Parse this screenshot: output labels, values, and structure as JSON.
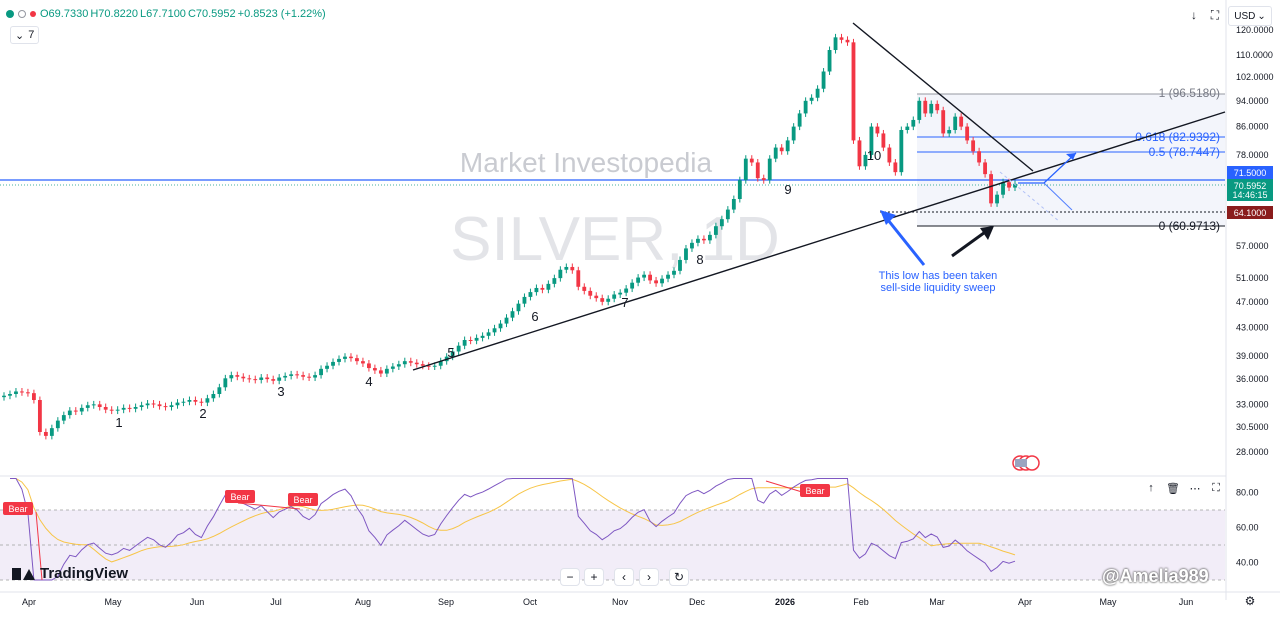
{
  "header": {
    "ohlc": {
      "open": "O69.7330",
      "high": "H70.8220",
      "low": "L67.7100",
      "close": "C70.5952",
      "change": "+0.8523 (+1.22%)"
    },
    "indicator_count": "7",
    "currency": "USD"
  },
  "watermark": {
    "brand": "Market Investopedia",
    "symbol": "SILVER, 1D"
  },
  "annotations": {
    "note_line1": "This low has been taken",
    "note_line2": "sell-side liquidity sweep",
    "fib_1": "1 (96.5180)",
    "fib_0618": "0.618 (82.9392)",
    "fib_05": "0.5 (78.7447)",
    "fib_0": "0 (60.9713)"
  },
  "colors": {
    "up": "#089981",
    "down": "#f23645",
    "blue": "#2962ff",
    "rsi_line": "#7e57c2",
    "rsi_ma": "#f7c548",
    "price_label_green": "#089981",
    "price_label_red": "#b71c1c",
    "resistance_label": "#2962ff"
  },
  "price_labels": {
    "resistance": "71.5000",
    "last": "70.5952",
    "countdown": "14:46:15",
    "support": "64.1000"
  },
  "footer": {
    "logo_text": "TradingView",
    "user_watermark": "@Amelia989"
  },
  "chart_data": {
    "type": "candlestick",
    "y_ticks": [
      "120.0000",
      "110.0000",
      "102.0000",
      "94.0000",
      "86.0000",
      "78.0000",
      "64.1000",
      "57.0000",
      "51.0000",
      "47.0000",
      "43.0000",
      "39.0000",
      "36.0000",
      "33.0000",
      "30.5000",
      "28.0000"
    ],
    "x_ticks": [
      "Apr",
      "May",
      "Jun",
      "Jul",
      "Aug",
      "Sep",
      "Oct",
      "Nov",
      "Dec",
      "2026",
      "Feb",
      "Mar",
      "Apr",
      "May",
      "Jun"
    ],
    "wave_labels": [
      "1",
      "2",
      "3",
      "4",
      "5",
      "6",
      "7",
      "8",
      "9",
      "10"
    ],
    "rsi": {
      "ticks": [
        "80.00",
        "60.00",
        "40.00"
      ],
      "bear_labels": [
        "Bear",
        "Bear",
        "Bear",
        "Bear"
      ]
    },
    "series": [
      {
        "values": [
          34.0,
          34.2,
          34.5,
          34.4,
          34.3,
          33.5,
          30.0,
          29.6,
          30.4,
          31.2,
          31.8,
          32.3,
          32.2,
          32.6,
          32.9,
          33.0,
          32.7,
          32.4,
          32.3,
          32.4,
          32.6,
          32.5,
          32.7,
          32.9,
          33.1,
          33.0,
          32.8,
          32.7,
          32.9,
          33.2,
          33.3,
          33.5,
          33.3,
          33.2,
          33.7,
          34.2,
          35.0,
          36.1,
          36.5,
          36.3,
          36.1,
          36.0,
          35.9,
          36.2,
          36.0,
          35.8,
          36.2,
          36.4,
          36.6,
          36.5,
          36.3,
          36.2,
          36.5,
          37.3,
          37.7,
          38.2,
          38.6,
          38.9,
          38.7,
          38.3,
          38.0,
          37.4,
          37.1,
          36.7,
          37.3,
          37.6,
          37.9,
          38.3,
          38.1,
          37.9,
          37.7,
          37.6,
          37.7,
          38.3,
          38.9,
          39.6,
          40.4,
          41.2,
          41.1,
          41.5,
          41.8,
          42.3,
          42.9,
          43.6,
          44.5,
          45.5,
          46.7,
          47.8,
          48.6,
          49.3,
          49.0,
          50.0,
          51.0,
          52.5,
          53.0,
          52.4,
          49.5,
          48.8,
          48.0,
          47.6,
          47.0,
          47.5,
          48.2,
          48.5,
          49.2,
          50.2,
          51.1,
          51.6,
          50.6,
          50.1,
          50.9,
          51.6,
          52.3,
          54.3,
          56.5,
          57.6,
          58.4,
          58.1,
          59.2,
          61.0,
          62.5,
          64.6,
          67.0,
          71.5,
          77.0,
          76.0,
          72.0,
          71.5,
          77.0,
          80.0,
          79.0,
          82.0,
          86.0,
          90.0,
          94.0,
          95.0,
          98.0,
          104.0,
          112.0,
          117.0,
          116.0,
          115.0,
          82.0,
          75.0,
          78.0,
          86.0,
          84.0,
          80.0,
          76.0,
          73.5,
          85.0,
          86.0,
          88.0,
          94.0,
          90.0,
          93.0,
          91.0,
          84.0,
          85.0,
          89.0,
          86.0,
          82.0,
          79.0,
          76.0,
          73.0,
          66.0,
          68.0,
          71.0,
          69.7,
          70.6
        ]
      }
    ]
  }
}
